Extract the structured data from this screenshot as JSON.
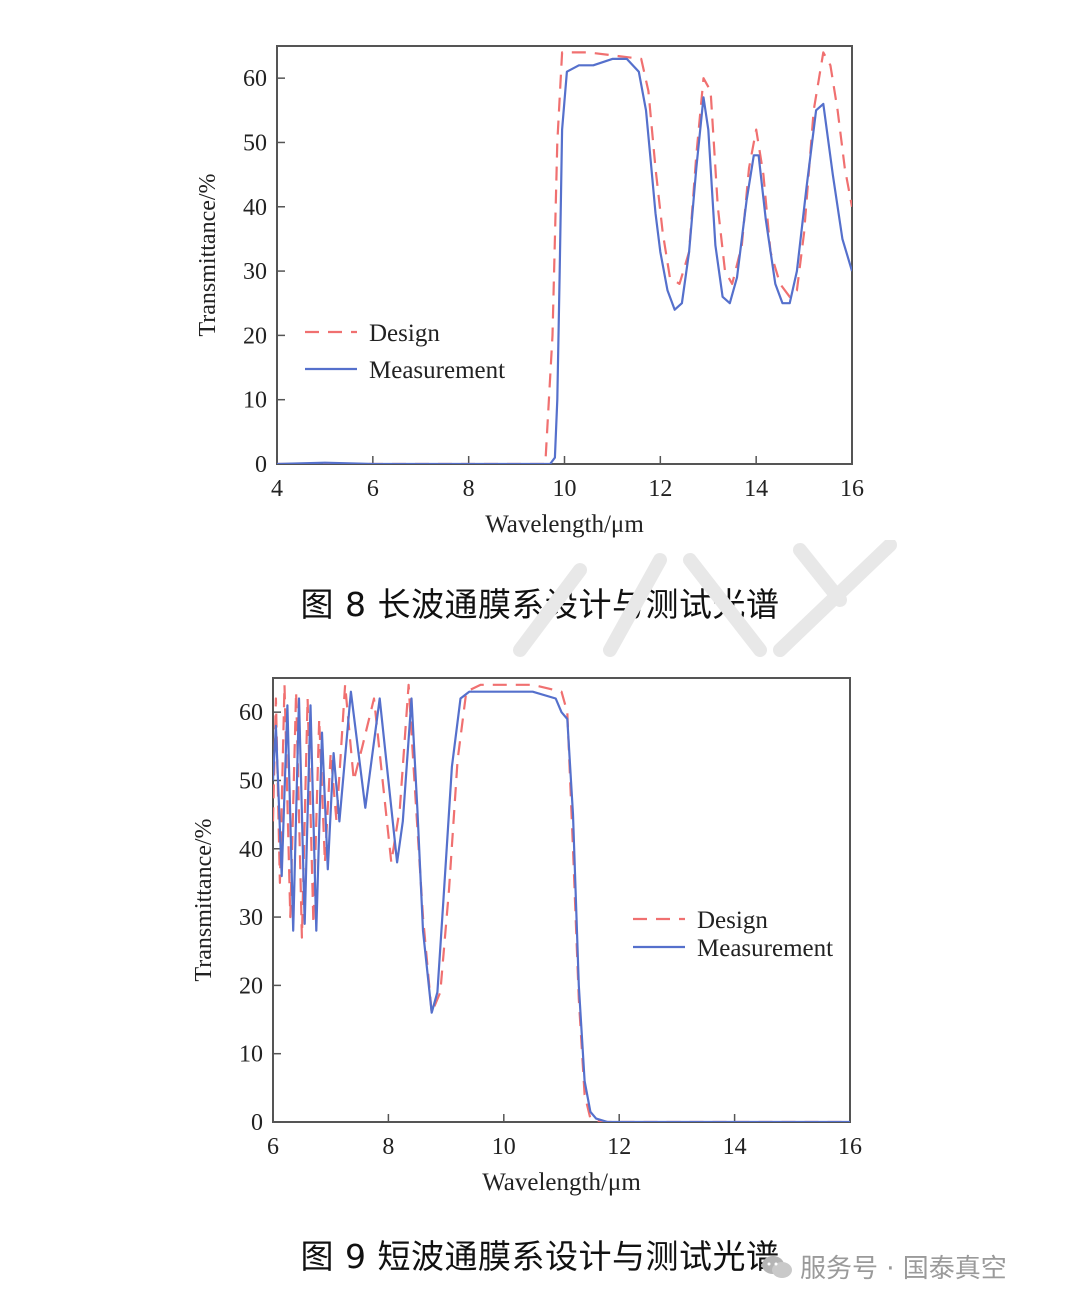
{
  "figures": [
    {
      "caption": "图 8  长波通膜系设计与测试光谱"
    },
    {
      "caption": "图 9  短波通膜系设计与测试光谱"
    }
  ],
  "footer": {
    "text": "服务号 · 国泰真空",
    "icon": "wechat-icon"
  },
  "colors": {
    "design": "#f07070",
    "measurement": "#5570cc",
    "axis": "#555555"
  },
  "chart_data": [
    {
      "type": "line",
      "title": "",
      "xlabel": "Wavelength/μm",
      "ylabel": "Transmittance/%",
      "xlim": [
        4,
        16
      ],
      "ylim": [
        0,
        65
      ],
      "xticks": [
        4,
        6,
        8,
        10,
        12,
        14,
        16
      ],
      "yticks": [
        0,
        10,
        20,
        30,
        40,
        50,
        60
      ],
      "legend_position": "center-left",
      "series": [
        {
          "name": "Design",
          "style": "dashed",
          "x": [
            4,
            9.6,
            9.75,
            9.85,
            9.95,
            10.5,
            11.6,
            11.75,
            11.9,
            12.05,
            12.2,
            12.4,
            12.6,
            12.75,
            12.9,
            13.05,
            13.2,
            13.35,
            13.5,
            13.7,
            13.85,
            14,
            14.15,
            14.3,
            14.5,
            14.7,
            14.85,
            15,
            15.2,
            15.4,
            15.55,
            15.7,
            15.85,
            16
          ],
          "y": [
            0,
            0,
            20,
            50,
            64,
            64,
            63,
            58,
            46,
            36,
            29,
            28,
            33,
            48,
            60,
            58,
            40,
            30,
            28,
            34,
            46,
            52,
            45,
            33,
            28,
            26,
            27,
            36,
            55,
            64,
            62,
            55,
            46,
            40
          ]
        },
        {
          "name": "Measurement",
          "style": "solid",
          "x": [
            4,
            5,
            6,
            9.7,
            9.8,
            9.85,
            9.9,
            9.95,
            10.05,
            10.3,
            10.6,
            11,
            11.3,
            11.55,
            11.7,
            11.8,
            11.9,
            12.0,
            12.15,
            12.3,
            12.45,
            12.6,
            12.75,
            12.9,
            13.0,
            13.15,
            13.3,
            13.45,
            13.6,
            13.8,
            13.95,
            14.05,
            14.2,
            14.4,
            14.55,
            14.7,
            14.85,
            15.05,
            15.25,
            15.4,
            15.6,
            15.8,
            16
          ],
          "y": [
            0,
            0.2,
            0,
            0,
            1,
            10,
            30,
            52,
            61,
            62,
            62,
            63,
            63,
            61,
            55,
            47,
            39,
            33,
            27,
            24,
            25,
            33,
            46,
            57,
            52,
            34,
            26,
            25,
            29,
            41,
            48,
            48,
            38,
            28,
            25,
            25,
            30,
            43,
            55,
            56,
            45,
            35,
            30
          ]
        }
      ]
    },
    {
      "type": "line",
      "title": "",
      "xlabel": "Wavelength/μm",
      "ylabel": "Transmittance/%",
      "xlim": [
        6,
        16
      ],
      "ylim": [
        0,
        65
      ],
      "xticks": [
        6,
        8,
        10,
        12,
        14,
        16
      ],
      "yticks": [
        0,
        10,
        20,
        30,
        40,
        50,
        60
      ],
      "legend_position": "center-right",
      "series": [
        {
          "name": "Design",
          "style": "dashed",
          "x": [
            6,
            6.05,
            6.12,
            6.2,
            6.3,
            6.4,
            6.5,
            6.6,
            6.7,
            6.8,
            6.9,
            7.0,
            7.1,
            7.25,
            7.4,
            7.55,
            7.75,
            7.9,
            8.05,
            8.2,
            8.35,
            8.45,
            8.6,
            8.75,
            8.9,
            9.05,
            9.2,
            9.35,
            9.6,
            10,
            10.5,
            11.0,
            11.1,
            11.2,
            11.3,
            11.4,
            11.5,
            11.7,
            12,
            16
          ],
          "y": [
            44,
            62,
            35,
            64,
            30,
            63,
            27,
            62,
            29,
            59,
            38,
            54,
            44,
            64,
            50,
            55,
            62,
            50,
            38,
            46,
            64,
            50,
            30,
            16,
            19,
            34,
            53,
            63,
            64,
            64,
            64,
            63,
            60,
            40,
            18,
            4,
            0.5,
            0,
            0,
            0
          ]
        },
        {
          "name": "Measurement",
          "style": "solid",
          "x": [
            6,
            6.05,
            6.15,
            6.25,
            6.35,
            6.45,
            6.55,
            6.65,
            6.75,
            6.85,
            6.95,
            7.05,
            7.15,
            7.35,
            7.6,
            7.85,
            8.0,
            8.15,
            8.25,
            8.4,
            8.5,
            8.6,
            8.75,
            8.85,
            8.95,
            9.1,
            9.25,
            9.4,
            9.6,
            10,
            10.5,
            10.9,
            11.0,
            11.1,
            11.2,
            11.3,
            11.4,
            11.5,
            11.6,
            11.8,
            12.5,
            16
          ],
          "y": [
            50,
            58,
            36,
            61,
            28,
            62,
            29,
            61,
            28,
            57,
            37,
            54,
            44,
            63,
            46,
            62,
            50,
            38,
            44,
            62,
            46,
            28,
            16,
            19,
            32,
            52,
            62,
            63,
            63,
            63,
            63,
            62,
            60,
            59,
            45,
            20,
            6,
            1.5,
            0.5,
            0,
            0,
            0
          ]
        }
      ]
    }
  ]
}
